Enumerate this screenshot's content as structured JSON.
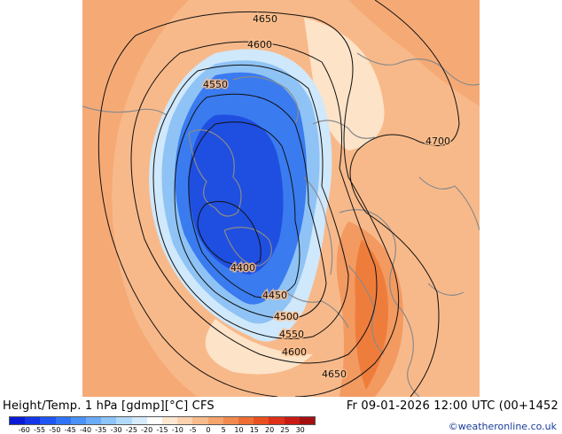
{
  "map": {
    "contour_labels": [
      {
        "id": "4650-north",
        "text": "4650"
      },
      {
        "id": "4600-north",
        "text": "4600"
      },
      {
        "id": "4550-north",
        "text": "4550"
      },
      {
        "id": "4700-east",
        "text": "4700"
      },
      {
        "id": "4400-center",
        "text": "4400"
      },
      {
        "id": "4450-south",
        "text": "4450"
      },
      {
        "id": "4500-south",
        "text": "4500"
      },
      {
        "id": "4550-south",
        "text": "4550"
      },
      {
        "id": "4600-south",
        "text": "4600"
      },
      {
        "id": "4650-south",
        "text": "4650"
      }
    ],
    "colors": {
      "deep_blue": "#1f4fe0",
      "mid_blue": "#3a7bf0",
      "light_blue": "#8fc3f5",
      "pale_blue": "#cfe8fb",
      "cream": "#fde3c8",
      "light_orange": "#f8b98a",
      "orange": "#f39a61",
      "dark_orange": "#ee7d3c",
      "coast": "#8a8a8a",
      "contour": "#111111"
    }
  },
  "footer": {
    "title": "Height/Temp. 1 hPa [gdmp][°C] CFS",
    "valid_time": "Fr 09-01-2026 12:00 UTC (00+1452",
    "credit": "©weatheronline.co.uk",
    "colorbar": {
      "colors": [
        "#0a1bd6",
        "#1436e8",
        "#1f55f2",
        "#2f74f6",
        "#4a92f8",
        "#6aacfa",
        "#8cc4fb",
        "#b2dafc",
        "#d6ebfd",
        "#ffffff",
        "#fde8d2",
        "#fbd3b0",
        "#f8bb8b",
        "#f5a46c",
        "#f28a4e",
        "#ee6e33",
        "#e9501f",
        "#de3118",
        "#c81b14",
        "#a50f10"
      ],
      "tick_labels": [
        "-60",
        "-55",
        "-50",
        "-45",
        "-40",
        "-35",
        "-30",
        "-25",
        "-20",
        "-15",
        "-10",
        "-5",
        "0",
        "5",
        "10",
        "15",
        "20",
        "25",
        "30"
      ]
    }
  }
}
